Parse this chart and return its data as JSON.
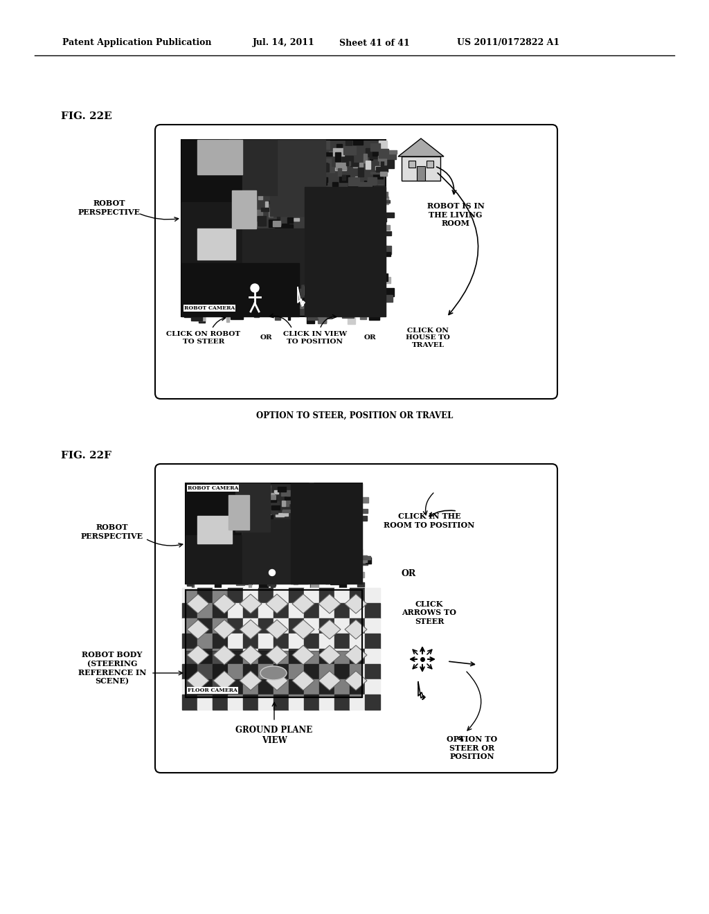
{
  "bg_color": "#ffffff",
  "header_text": "Patent Application Publication",
  "header_date": "Jul. 14, 2011",
  "header_sheet": "Sheet 41 of 41",
  "header_patent": "US 2011/0172822 A1",
  "fig_22e_label": "FIG. 22E",
  "fig_22f_label": "FIG. 22F",
  "fig22e_option_label": "OPTION TO STEER, POSITION OR TRAVEL",
  "fig22e_robot_perspective": "ROBOT\nPERSPECTIVE",
  "fig22e_robot_is_in": "ROBOT IS IN\nTHE LIVING\nROOM",
  "fig22e_robot_camera": "ROBOT CAMERA",
  "fig22e_click_robot": "CLICK ON ROBOT\nTO STEER",
  "fig22e_click_view": "CLICK IN VIEW\nTO POSITION",
  "fig22e_click_house": "CLICK ON\nHOUSE TO\nTRAVEL",
  "fig22e_or1": "OR",
  "fig22e_or2": "OR",
  "fig22f_robot_perspective": "ROBOT\nPERSPECTIVE",
  "fig22f_robot_camera": "ROBOT CAMERA",
  "fig22f_floor_camera": "FLOOR CAMERA",
  "fig22f_click_room": "CLICK IN THE\nROOM TO POSITION",
  "fig22f_or": "OR",
  "fig22f_click_arrows": "CLICK\nARROWS TO\nSTEER",
  "fig22f_robot_body": "ROBOT BODY\n(STEERING\nREFERENCE IN\nSCENE)",
  "fig22f_ground_plane": "GROUND PLANE\nVIEW",
  "fig22f_option": "OPTION TO\nSTEER OR\nPOSITION"
}
